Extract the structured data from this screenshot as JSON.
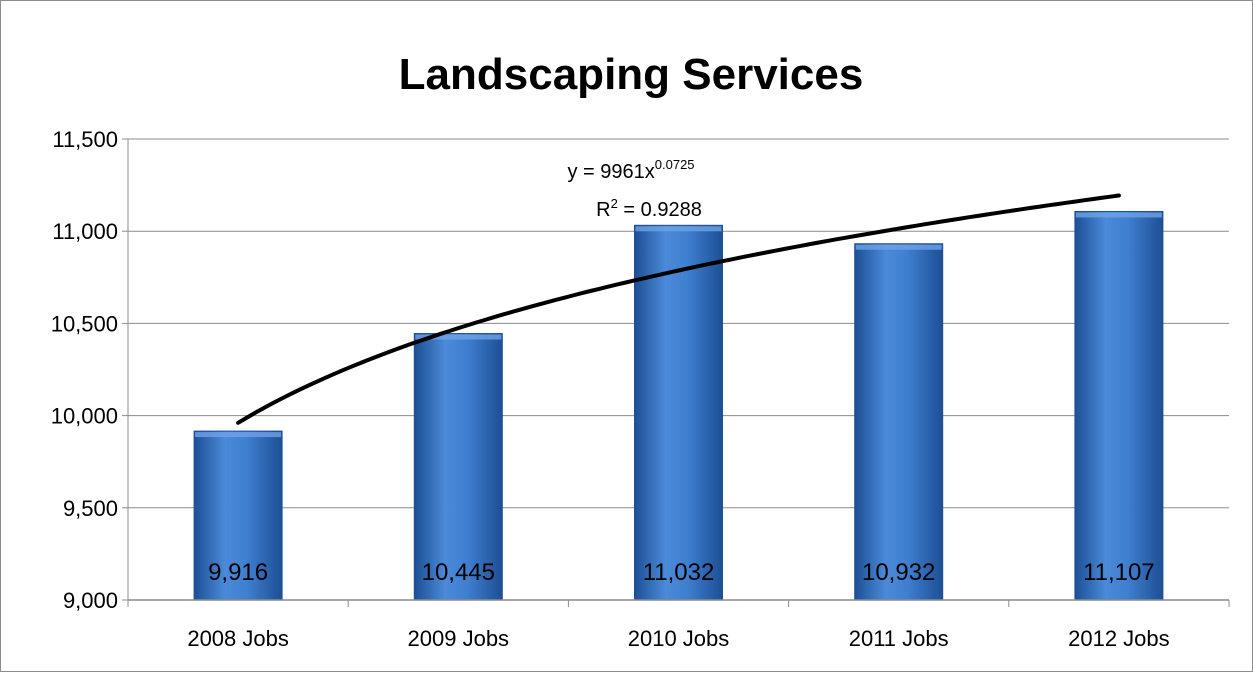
{
  "chart_data": {
    "type": "bar",
    "title": "Landscaping Services",
    "xlabel": "",
    "ylabel": "",
    "categories": [
      "2008 Jobs",
      "2009 Jobs",
      "2010 Jobs",
      "2011 Jobs",
      "2012 Jobs"
    ],
    "values": [
      9916,
      10445,
      11032,
      10932,
      11107
    ],
    "data_labels": [
      "9,916",
      "10,445",
      "11,032",
      "10,932",
      "11,107"
    ],
    "ylim": [
      9000,
      11500
    ],
    "yticks": [
      9000,
      9500,
      10000,
      10500,
      11000,
      11500
    ],
    "ytick_labels": [
      "9,000",
      "9,500",
      "10,000",
      "10,500",
      "11,000",
      "11,500"
    ],
    "grid": true,
    "legend": "none",
    "trendline": {
      "type": "power",
      "coefficient": 9961,
      "exponent": 0.0725,
      "equation_prefix": "y = 9961x",
      "equation_exponent": "0.0725",
      "r_squared_prefix": "R",
      "r_squared_power": "2",
      "r_squared_value": " = 0.9288"
    },
    "colors": {
      "bar": "#3f7fd0",
      "bar_dark": "#1d4f95",
      "bar_light": "#6fa3e6",
      "grid": "#8c8c8c",
      "trendline": "#000000"
    }
  }
}
